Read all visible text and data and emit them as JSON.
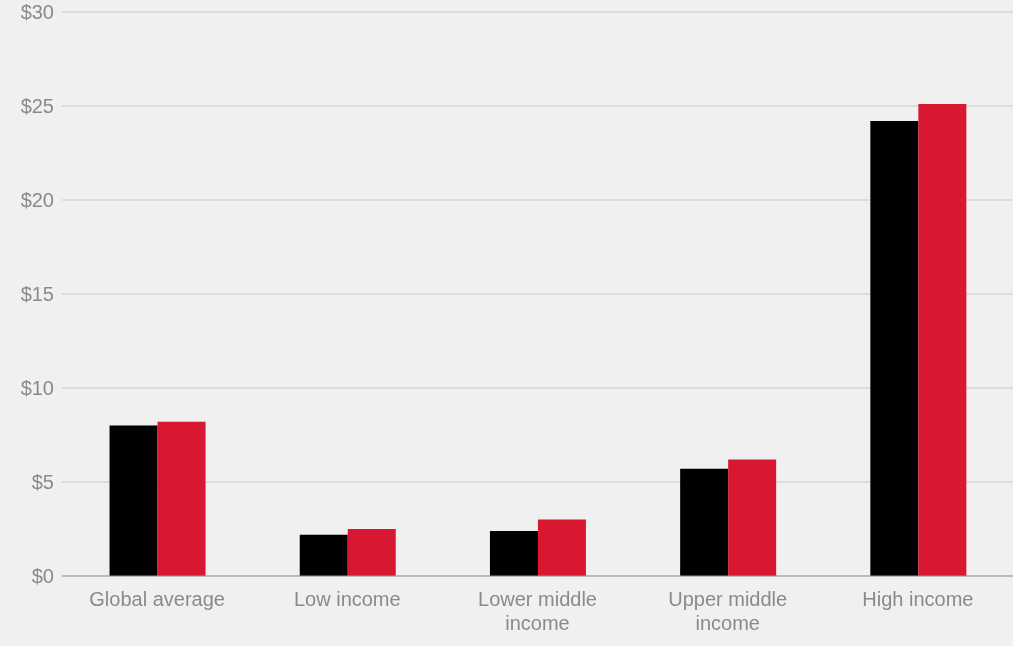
{
  "chart_data": {
    "type": "bar",
    "categories": [
      "Global average",
      "Low income",
      "Lower middle income",
      "Upper middle income",
      "High income"
    ],
    "series": [
      {
        "color": "#000000",
        "values": [
          8.0,
          2.2,
          2.4,
          5.7,
          24.2
        ]
      },
      {
        "color": "#d81830",
        "values": [
          8.2,
          2.5,
          3.0,
          6.2,
          25.1
        ]
      }
    ],
    "ylim": [
      0,
      30
    ],
    "yticks": [
      {
        "value": 0,
        "label": "$0"
      },
      {
        "value": 5,
        "label": "$5"
      },
      {
        "value": 10,
        "label": "$10"
      },
      {
        "value": 15,
        "label": "$15"
      },
      {
        "value": 20,
        "label": "$20"
      },
      {
        "value": 25,
        "label": "$25"
      },
      {
        "value": 30,
        "label": "$30"
      }
    ],
    "grid": "y",
    "legend": false
  }
}
